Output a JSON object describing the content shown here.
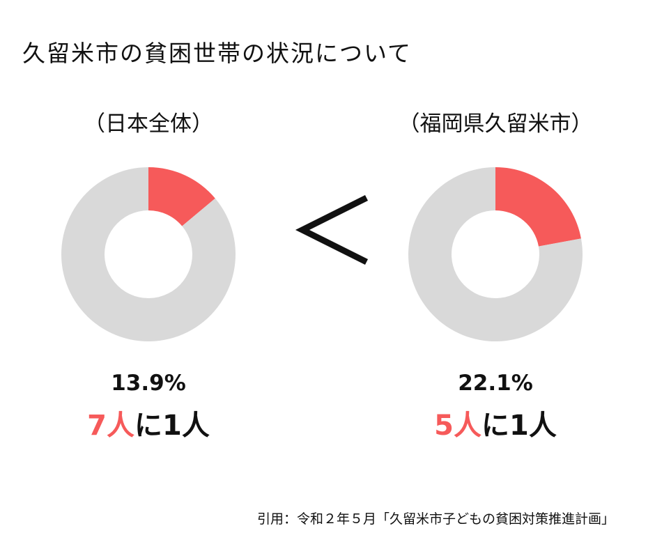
{
  "title": "久留米市の貧困世帯の状況について",
  "comparator": "<",
  "source": "引用：令和２年５月「久留米市子どもの貧困対策推進計画」",
  "colors": {
    "highlight": "#f65a5a",
    "remainder": "#d9d9d9",
    "text": "#111111"
  },
  "chart_data": [
    {
      "type": "pie",
      "title": "（日本全体）",
      "value_label": "13.9%",
      "ratio_number": "7人",
      "ratio_rest": "に1人",
      "slices": [
        {
          "name": "",
          "value": 13.9,
          "color": "#f65a5a"
        },
        {
          "name": "",
          "value": 86.1,
          "color": "#d9d9d9"
        }
      ]
    },
    {
      "type": "pie",
      "title": "（福岡県久留米市）",
      "value_label": "22.1%",
      "ratio_number": "5人",
      "ratio_rest": "に1人",
      "slices": [
        {
          "name": "",
          "value": 22.1,
          "color": "#f65a5a"
        },
        {
          "name": "",
          "value": 77.9,
          "color": "#d9d9d9"
        }
      ]
    }
  ]
}
